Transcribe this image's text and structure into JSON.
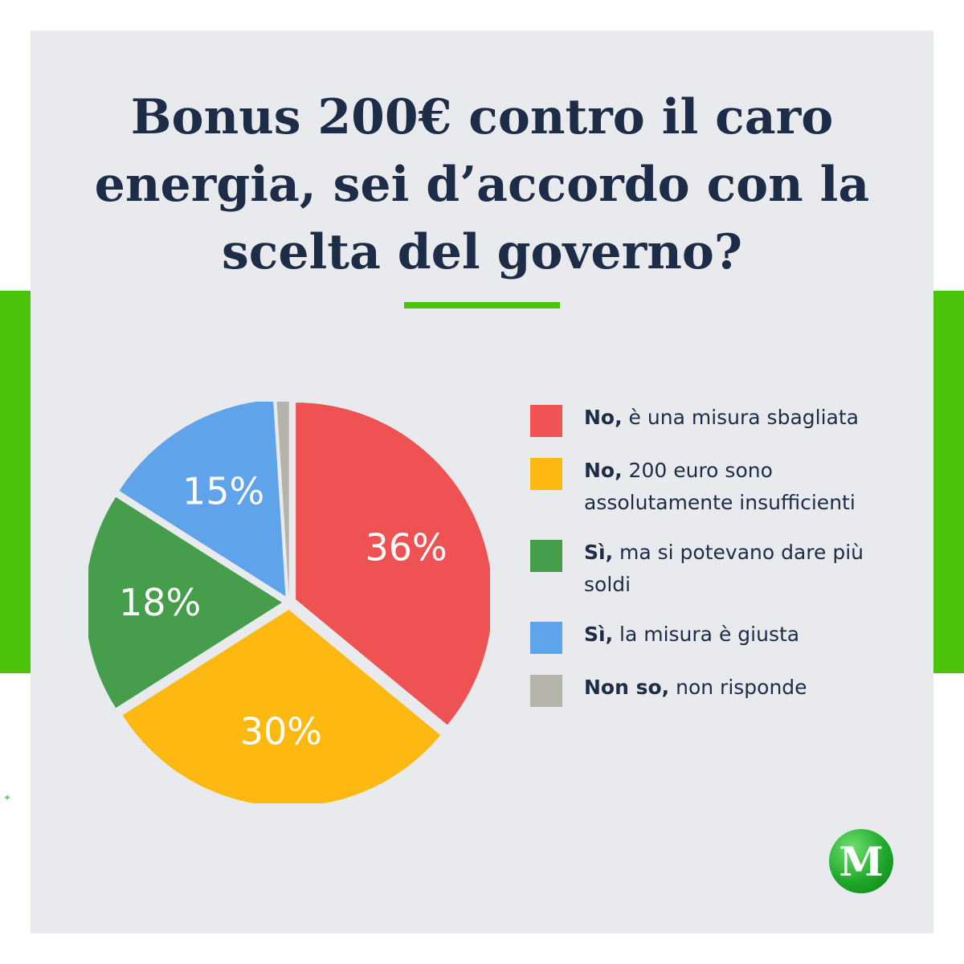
{
  "colors": {
    "background": "#e8eaee",
    "accent_green": "#4cc30b",
    "title": "#1e2d47",
    "logo_green": "#1fa82a"
  },
  "title": "Bonus 200€ contro il caro energia, sei d’accordo con la scelta del governo?",
  "chart_data": {
    "type": "pie",
    "title": "Bonus 200€ contro il caro energia, sei d’accordo con la scelta del governo?",
    "legend_position": "right",
    "slices": [
      {
        "label_bold": "No,",
        "label_rest": " è una misura sbagliata",
        "value": 36,
        "value_label": "36%",
        "color": "#ee5253",
        "show_label": true
      },
      {
        "label_bold": "No,",
        "label_rest": " 200 euro sono assolutamente insufficienti",
        "value": 30,
        "value_label": "30%",
        "color": "#feb812",
        "show_label": true
      },
      {
        "label_bold": "Sì,",
        "label_rest": " ma si potevano dare più soldi",
        "value": 18,
        "value_label": "18%",
        "color": "#469e4c",
        "show_label": true
      },
      {
        "label_bold": "Sì,",
        "label_rest": " la misura è giusta",
        "value": 15,
        "value_label": "15%",
        "color": "#5fa3ea",
        "show_label": true
      },
      {
        "label_bold": "Non so,",
        "label_rest": " non risponde",
        "value": 1,
        "value_label": "",
        "color": "#b6b3aa",
        "show_label": false
      }
    ]
  },
  "logo": {
    "letter": "M",
    "icon": "m-logo-icon"
  }
}
